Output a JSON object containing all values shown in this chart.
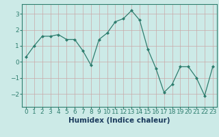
{
  "x": [
    0,
    1,
    2,
    3,
    4,
    5,
    6,
    7,
    8,
    9,
    10,
    11,
    12,
    13,
    14,
    15,
    16,
    17,
    18,
    19,
    20,
    21,
    22,
    23
  ],
  "y": [
    0.3,
    1.0,
    1.6,
    1.6,
    1.7,
    1.4,
    1.4,
    0.7,
    -0.2,
    1.4,
    1.8,
    2.5,
    2.7,
    3.2,
    2.6,
    0.8,
    -0.4,
    -1.9,
    -1.4,
    -0.3,
    -0.3,
    -1.0,
    -2.1,
    -0.3
  ],
  "line_color": "#2e7d6e",
  "marker": "D",
  "marker_size": 2.0,
  "linewidth": 0.9,
  "bg_color": "#cceae7",
  "grid_color": "#c9a8a8",
  "xlabel": "Humidex (Indice chaleur)",
  "ylim": [
    -2.8,
    3.6
  ],
  "xlim": [
    -0.5,
    23.5
  ],
  "yticks": [
    -2,
    -1,
    0,
    1,
    2,
    3
  ],
  "xticks": [
    0,
    1,
    2,
    3,
    4,
    5,
    6,
    7,
    8,
    9,
    10,
    11,
    12,
    13,
    14,
    15,
    16,
    17,
    18,
    19,
    20,
    21,
    22,
    23
  ],
  "xlabel_fontsize": 7.5,
  "tick_fontsize": 6.5,
  "spine_color": "#2e7d6e",
  "xlabel_color": "#1a3a5c",
  "xlabel_bold": true
}
